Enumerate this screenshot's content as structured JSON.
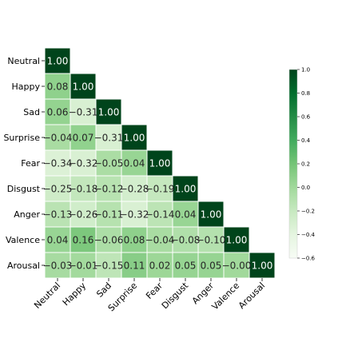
{
  "chart_data": {
    "type": "heatmap",
    "variables": [
      "Neutral",
      "Happy",
      "Sad",
      "Surprise",
      "Fear",
      "Disgust",
      "Anger",
      "Valence",
      "Arousal"
    ],
    "lower_triangle_only": true,
    "matrix": [
      [
        "1.00"
      ],
      [
        "0.08",
        "1.00"
      ],
      [
        "0.06",
        "-0.31",
        "1.00"
      ],
      [
        "-0.04",
        "0.07",
        "-0.31",
        "1.00"
      ],
      [
        "-0.34",
        "-0.32",
        "-0.05",
        "0.04",
        "1.00"
      ],
      [
        "-0.25",
        "-0.18",
        "-0.12",
        "-0.28",
        "-0.19",
        "1.00"
      ],
      [
        "-0.13",
        "-0.26",
        "-0.11",
        "-0.32",
        "-0.14",
        "0.04",
        "1.00"
      ],
      [
        "0.04",
        "0.16",
        "-0.06",
        "0.08",
        "-0.04",
        "-0.08",
        "-0.10",
        "1.00"
      ],
      [
        "-0.03",
        "-0.01",
        "-0.15",
        "0.11",
        "0.02",
        "0.05",
        "0.05",
        "-0.00",
        "1.00"
      ]
    ],
    "colormap": "Greens",
    "colorbar": {
      "range": [
        -0.6,
        1.0
      ],
      "ticks": [
        "1.0",
        "0.8",
        "0.6",
        "0.4",
        "0.2",
        "0.0",
        "−0.2",
        "−0.4",
        "−0.6"
      ]
    },
    "xlabel_rotation_deg": 45,
    "grid": false
  }
}
